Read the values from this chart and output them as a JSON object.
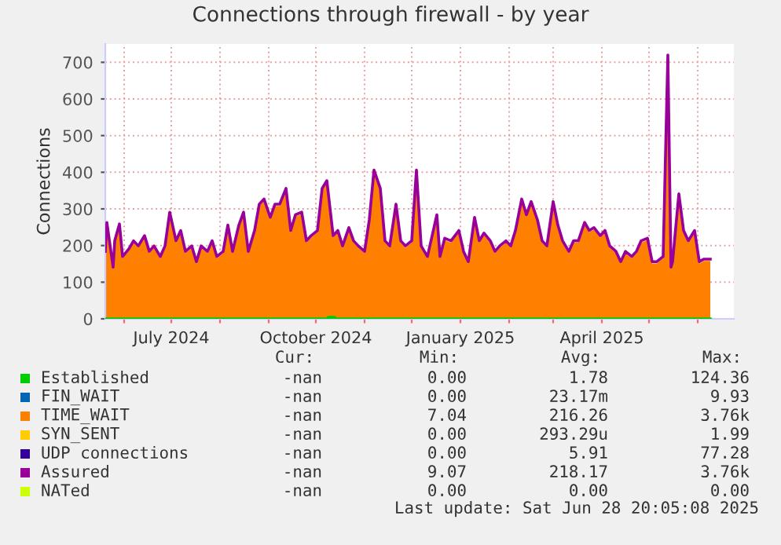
{
  "chart_data": {
    "type": "area",
    "title": "Connections through firewall - by year",
    "ylabel": "Connections",
    "x": [
      "2024-05-20",
      "2024-05-21",
      "2024-05-25",
      "2024-05-26",
      "2024-05-29",
      "2024-05-31",
      "2024-06-04",
      "2024-06-07",
      "2024-06-10",
      "2024-06-14",
      "2024-06-17",
      "2024-06-20",
      "2024-06-24",
      "2024-06-27",
      "2024-06-30",
      "2024-07-04",
      "2024-07-07",
      "2024-07-10",
      "2024-07-14",
      "2024-07-17",
      "2024-07-20",
      "2024-07-24",
      "2024-07-27",
      "2024-07-30",
      "2024-08-03",
      "2024-08-06",
      "2024-08-09",
      "2024-08-13",
      "2024-08-16",
      "2024-08-19",
      "2024-08-23",
      "2024-08-26",
      "2024-08-29",
      "2024-09-02",
      "2024-09-05",
      "2024-09-08",
      "2024-09-12",
      "2024-09-15",
      "2024-09-18",
      "2024-09-22",
      "2024-09-25",
      "2024-09-28",
      "2024-10-02",
      "2024-10-05",
      "2024-10-08",
      "2024-10-12",
      "2024-10-15",
      "2024-10-18",
      "2024-10-22",
      "2024-10-25",
      "2024-10-28",
      "2024-11-01",
      "2024-11-04",
      "2024-11-07",
      "2024-11-11",
      "2024-11-14",
      "2024-11-17",
      "2024-11-21",
      "2024-11-24",
      "2024-11-27",
      "2024-12-01",
      "2024-12-04",
      "2024-12-07",
      "2024-12-11",
      "2024-12-14",
      "2024-12-17",
      "2024-12-19",
      "2024-12-22",
      "2024-12-26",
      "2024-12-31",
      "2025-01-03",
      "2025-01-06",
      "2025-01-10",
      "2025-01-13",
      "2025-01-16",
      "2025-01-20",
      "2025-01-23",
      "2025-01-26",
      "2025-01-30",
      "2025-02-02",
      "2025-02-05",
      "2025-02-09",
      "2025-02-12",
      "2025-02-15",
      "2025-02-19",
      "2025-02-22",
      "2025-02-25",
      "2025-03-01",
      "2025-03-04",
      "2025-03-07",
      "2025-03-11",
      "2025-03-14",
      "2025-03-17",
      "2025-03-21",
      "2025-03-24",
      "2025-03-27",
      "2025-03-31",
      "2025-04-03",
      "2025-04-06",
      "2025-04-10",
      "2025-04-13",
      "2025-04-16",
      "2025-04-20",
      "2025-04-23",
      "2025-04-26",
      "2025-04-30",
      "2025-05-03",
      "2025-05-06",
      "2025-05-10",
      "2025-05-13",
      "2025-05-15",
      "2025-05-16",
      "2025-05-20",
      "2025-05-23",
      "2025-05-26",
      "2025-05-30",
      "2025-06-02",
      "2025-06-05",
      "2025-06-09"
    ],
    "series": [
      {
        "name": "Established",
        "color": "#00cc00",
        "type": "line",
        "x": [
          "2024-05-20",
          "2024-10-08",
          "2024-10-09",
          "2024-10-13",
          "2024-10-14",
          "2025-06-09"
        ],
        "values": [
          0,
          0,
          4,
          4,
          0,
          0
        ]
      },
      {
        "name": "FIN_WAIT",
        "color": "#0066b3",
        "type": "line",
        "values": [
          null,
          null,
          null,
          null,
          null,
          null,
          null,
          null,
          null,
          null,
          null,
          null,
          null,
          null,
          null,
          null,
          null,
          null,
          null,
          null,
          null,
          null,
          null,
          null,
          null,
          null,
          null,
          null,
          null,
          null,
          null,
          null,
          null,
          null,
          null,
          null,
          null,
          null,
          null,
          null,
          null,
          null,
          null,
          null,
          null,
          null,
          null,
          null,
          null,
          null,
          null,
          null,
          null,
          null,
          null,
          null,
          null,
          null,
          null,
          null,
          null,
          null,
          null,
          null,
          null,
          null,
          null,
          null,
          null,
          null,
          null,
          null,
          null,
          null,
          null,
          null,
          null,
          null,
          null,
          null,
          null,
          null,
          null,
          null,
          null,
          null,
          null,
          null,
          null,
          null,
          null,
          null,
          null,
          null,
          null,
          null,
          null,
          null,
          null,
          null,
          null,
          null,
          null,
          null,
          null,
          null,
          null,
          null,
          null,
          null,
          null,
          null,
          null,
          null,
          null,
          null,
          null,
          null,
          null
        ]
      },
      {
        "name": "TIME_WAIT",
        "color": "#ff8000",
        "values": [
          179,
          258,
          136,
          208,
          254,
          165,
          186,
          208,
          194,
          222,
          179,
          194,
          165,
          194,
          286,
          208,
          236,
          179,
          194,
          151,
          194,
          179,
          208,
          165,
          179,
          251,
          179,
          251,
          286,
          179,
          236,
          308,
          322,
          272,
          308,
          308,
          351,
          236,
          279,
          286,
          208,
          222,
          236,
          351,
          372,
          222,
          236,
          194,
          244,
          208,
          194,
          179,
          265,
          401,
          351,
          208,
          194,
          308,
          208,
          194,
          208,
          401,
          194,
          165,
          222,
          279,
          165,
          215,
          208,
          236,
          179,
          151,
          272,
          208,
          229,
          208,
          179,
          194,
          208,
          194,
          236,
          322,
          279,
          315,
          265,
          208,
          194,
          315,
          251,
          208,
          179,
          208,
          208,
          258,
          236,
          244,
          222,
          236,
          194,
          179,
          151,
          179,
          165,
          179,
          208,
          215,
          151,
          151,
          165,
          715,
          136,
          151,
          336,
          236,
          208,
          236,
          151,
          158,
          158
        ]
      },
      {
        "name": "SYN_SENT",
        "color": "#ffcc00",
        "type": "line",
        "values": [
          null,
          null,
          null,
          null,
          null,
          null,
          null,
          null,
          null,
          null,
          null,
          null,
          null,
          null,
          null,
          null,
          null,
          null,
          null,
          null,
          null,
          null,
          null,
          null,
          null,
          null,
          null,
          null,
          null,
          null,
          null,
          null,
          null,
          null,
          null,
          null,
          null,
          null,
          null,
          null,
          null,
          null,
          null,
          null,
          null,
          null,
          null,
          null,
          null,
          null,
          null,
          null,
          null,
          null,
          null,
          null,
          null,
          null,
          null,
          null,
          null,
          null,
          null,
          null,
          null,
          null,
          null,
          null,
          null,
          null,
          null,
          null,
          null,
          null,
          null,
          null,
          null,
          null,
          null,
          null,
          null,
          null,
          null,
          null,
          null,
          null,
          null,
          null,
          null,
          null,
          null,
          null,
          null,
          null,
          null,
          null,
          null,
          null,
          null,
          null,
          null,
          null,
          null,
          null,
          null,
          null,
          null,
          null,
          null,
          null,
          null,
          null,
          null,
          null,
          null,
          null,
          null,
          null,
          null
        ]
      },
      {
        "name": "UDP connections",
        "color": "#330099",
        "type": "line",
        "values": [
          null,
          null,
          null,
          null,
          null,
          null,
          null,
          null,
          null,
          null,
          null,
          null,
          null,
          null,
          null,
          null,
          null,
          null,
          null,
          null,
          null,
          null,
          null,
          null,
          null,
          null,
          null,
          null,
          null,
          null,
          null,
          null,
          null,
          null,
          null,
          null,
          null,
          null,
          null,
          null,
          null,
          null,
          null,
          null,
          null,
          null,
          null,
          null,
          null,
          null,
          null,
          null,
          null,
          null,
          null,
          null,
          null,
          null,
          null,
          null,
          null,
          null,
          null,
          null,
          null,
          null,
          null,
          null,
          null,
          null,
          null,
          null,
          null,
          null,
          null,
          null,
          null,
          null,
          null,
          null,
          null,
          null,
          null,
          null,
          null,
          null,
          null,
          null,
          null,
          null,
          null,
          null,
          null,
          null,
          null,
          null,
          null,
          null,
          null,
          null,
          null,
          null,
          null,
          null,
          null,
          null,
          null,
          null,
          null,
          null,
          null,
          null,
          null,
          null,
          null,
          null,
          null,
          null,
          null
        ]
      },
      {
        "name": "Assured",
        "color": "#990099",
        "type": "line",
        "values": [
          184,
          263,
          141,
          213,
          259,
          170,
          191,
          213,
          199,
          227,
          184,
          199,
          170,
          199,
          291,
          213,
          241,
          184,
          199,
          156,
          199,
          184,
          213,
          170,
          184,
          256,
          184,
          256,
          291,
          184,
          241,
          313,
          327,
          277,
          313,
          313,
          356,
          241,
          284,
          291,
          213,
          227,
          241,
          356,
          377,
          227,
          241,
          199,
          249,
          213,
          199,
          184,
          270,
          406,
          356,
          213,
          199,
          313,
          213,
          199,
          213,
          406,
          199,
          170,
          227,
          284,
          170,
          220,
          213,
          241,
          184,
          156,
          277,
          213,
          234,
          213,
          184,
          199,
          213,
          199,
          241,
          327,
          284,
          320,
          270,
          213,
          199,
          320,
          256,
          213,
          184,
          213,
          213,
          263,
          241,
          249,
          227,
          241,
          199,
          184,
          156,
          184,
          170,
          184,
          213,
          220,
          156,
          156,
          170,
          720,
          141,
          156,
          341,
          241,
          213,
          241,
          156,
          163,
          163
        ]
      },
      {
        "name": "NATed",
        "color": "#ccff00",
        "type": "line",
        "values": [
          null,
          null,
          null,
          null,
          null,
          null,
          null,
          null,
          null,
          null,
          null,
          null,
          null,
          null,
          null,
          null,
          null,
          null,
          null,
          null,
          null,
          null,
          null,
          null,
          null,
          null,
          null,
          null,
          null,
          null,
          null,
          null,
          null,
          null,
          null,
          null,
          null,
          null,
          null,
          null,
          null,
          null,
          null,
          null,
          null,
          null,
          null,
          null,
          null,
          null,
          null,
          null,
          null,
          null,
          null,
          null,
          null,
          null,
          null,
          null,
          null,
          null,
          null,
          null,
          null,
          null,
          null,
          null,
          null,
          null,
          null,
          null,
          null,
          null,
          null,
          null,
          null,
          null,
          null,
          null,
          null,
          null,
          null,
          null,
          null,
          null,
          null,
          null,
          null,
          null,
          null,
          null,
          null,
          null,
          null,
          null,
          null,
          null,
          null,
          null,
          null,
          null,
          null,
          null,
          null,
          null,
          null,
          null,
          null,
          null,
          null,
          null,
          null,
          null,
          null,
          null,
          null,
          null,
          null
        ]
      }
    ],
    "xlim": [
      "2024-05-20",
      "2025-06-24"
    ],
    "xticks": [
      {
        "value": "2024-06-01",
        "label": null
      },
      {
        "value": "2024-07-01",
        "label": "July 2024"
      },
      {
        "value": "2024-08-01",
        "label": null
      },
      {
        "value": "2024-09-01",
        "label": null
      },
      {
        "value": "2024-10-01",
        "label": "October 2024"
      },
      {
        "value": "2024-11-01",
        "label": null
      },
      {
        "value": "2024-12-01",
        "label": null
      },
      {
        "value": "2025-01-01",
        "label": "January 2025"
      },
      {
        "value": "2025-02-01",
        "label": null
      },
      {
        "value": "2025-03-01",
        "label": null
      },
      {
        "value": "2025-04-01",
        "label": "April 2025"
      },
      {
        "value": "2025-05-01",
        "label": null
      },
      {
        "value": "2025-06-01",
        "label": null
      }
    ],
    "ylim": [
      0,
      750
    ],
    "yticks": [
      0,
      100,
      200,
      300,
      400,
      500,
      600,
      700
    ],
    "grid": true,
    "legend": "bottom",
    "annotations": [
      "Cur:",
      "Min:",
      "Avg:",
      "Max:",
      "-nan",
      "0.00",
      "1.78",
      "124.36",
      "-nan",
      "0.00",
      "23.17m",
      "9.93",
      "-nan",
      "7.04",
      "216.26",
      "3.76k",
      "-nan",
      "0.00",
      "293.29u",
      "1.99",
      "-nan",
      "0.00",
      "5.91",
      "77.28",
      "-nan",
      "9.07",
      "218.17",
      "3.76k",
      "-nan",
      "0.00",
      "0.00",
      "0.00",
      "Last update: Sat Jun 28 20:05:08 2025"
    ]
  }
}
